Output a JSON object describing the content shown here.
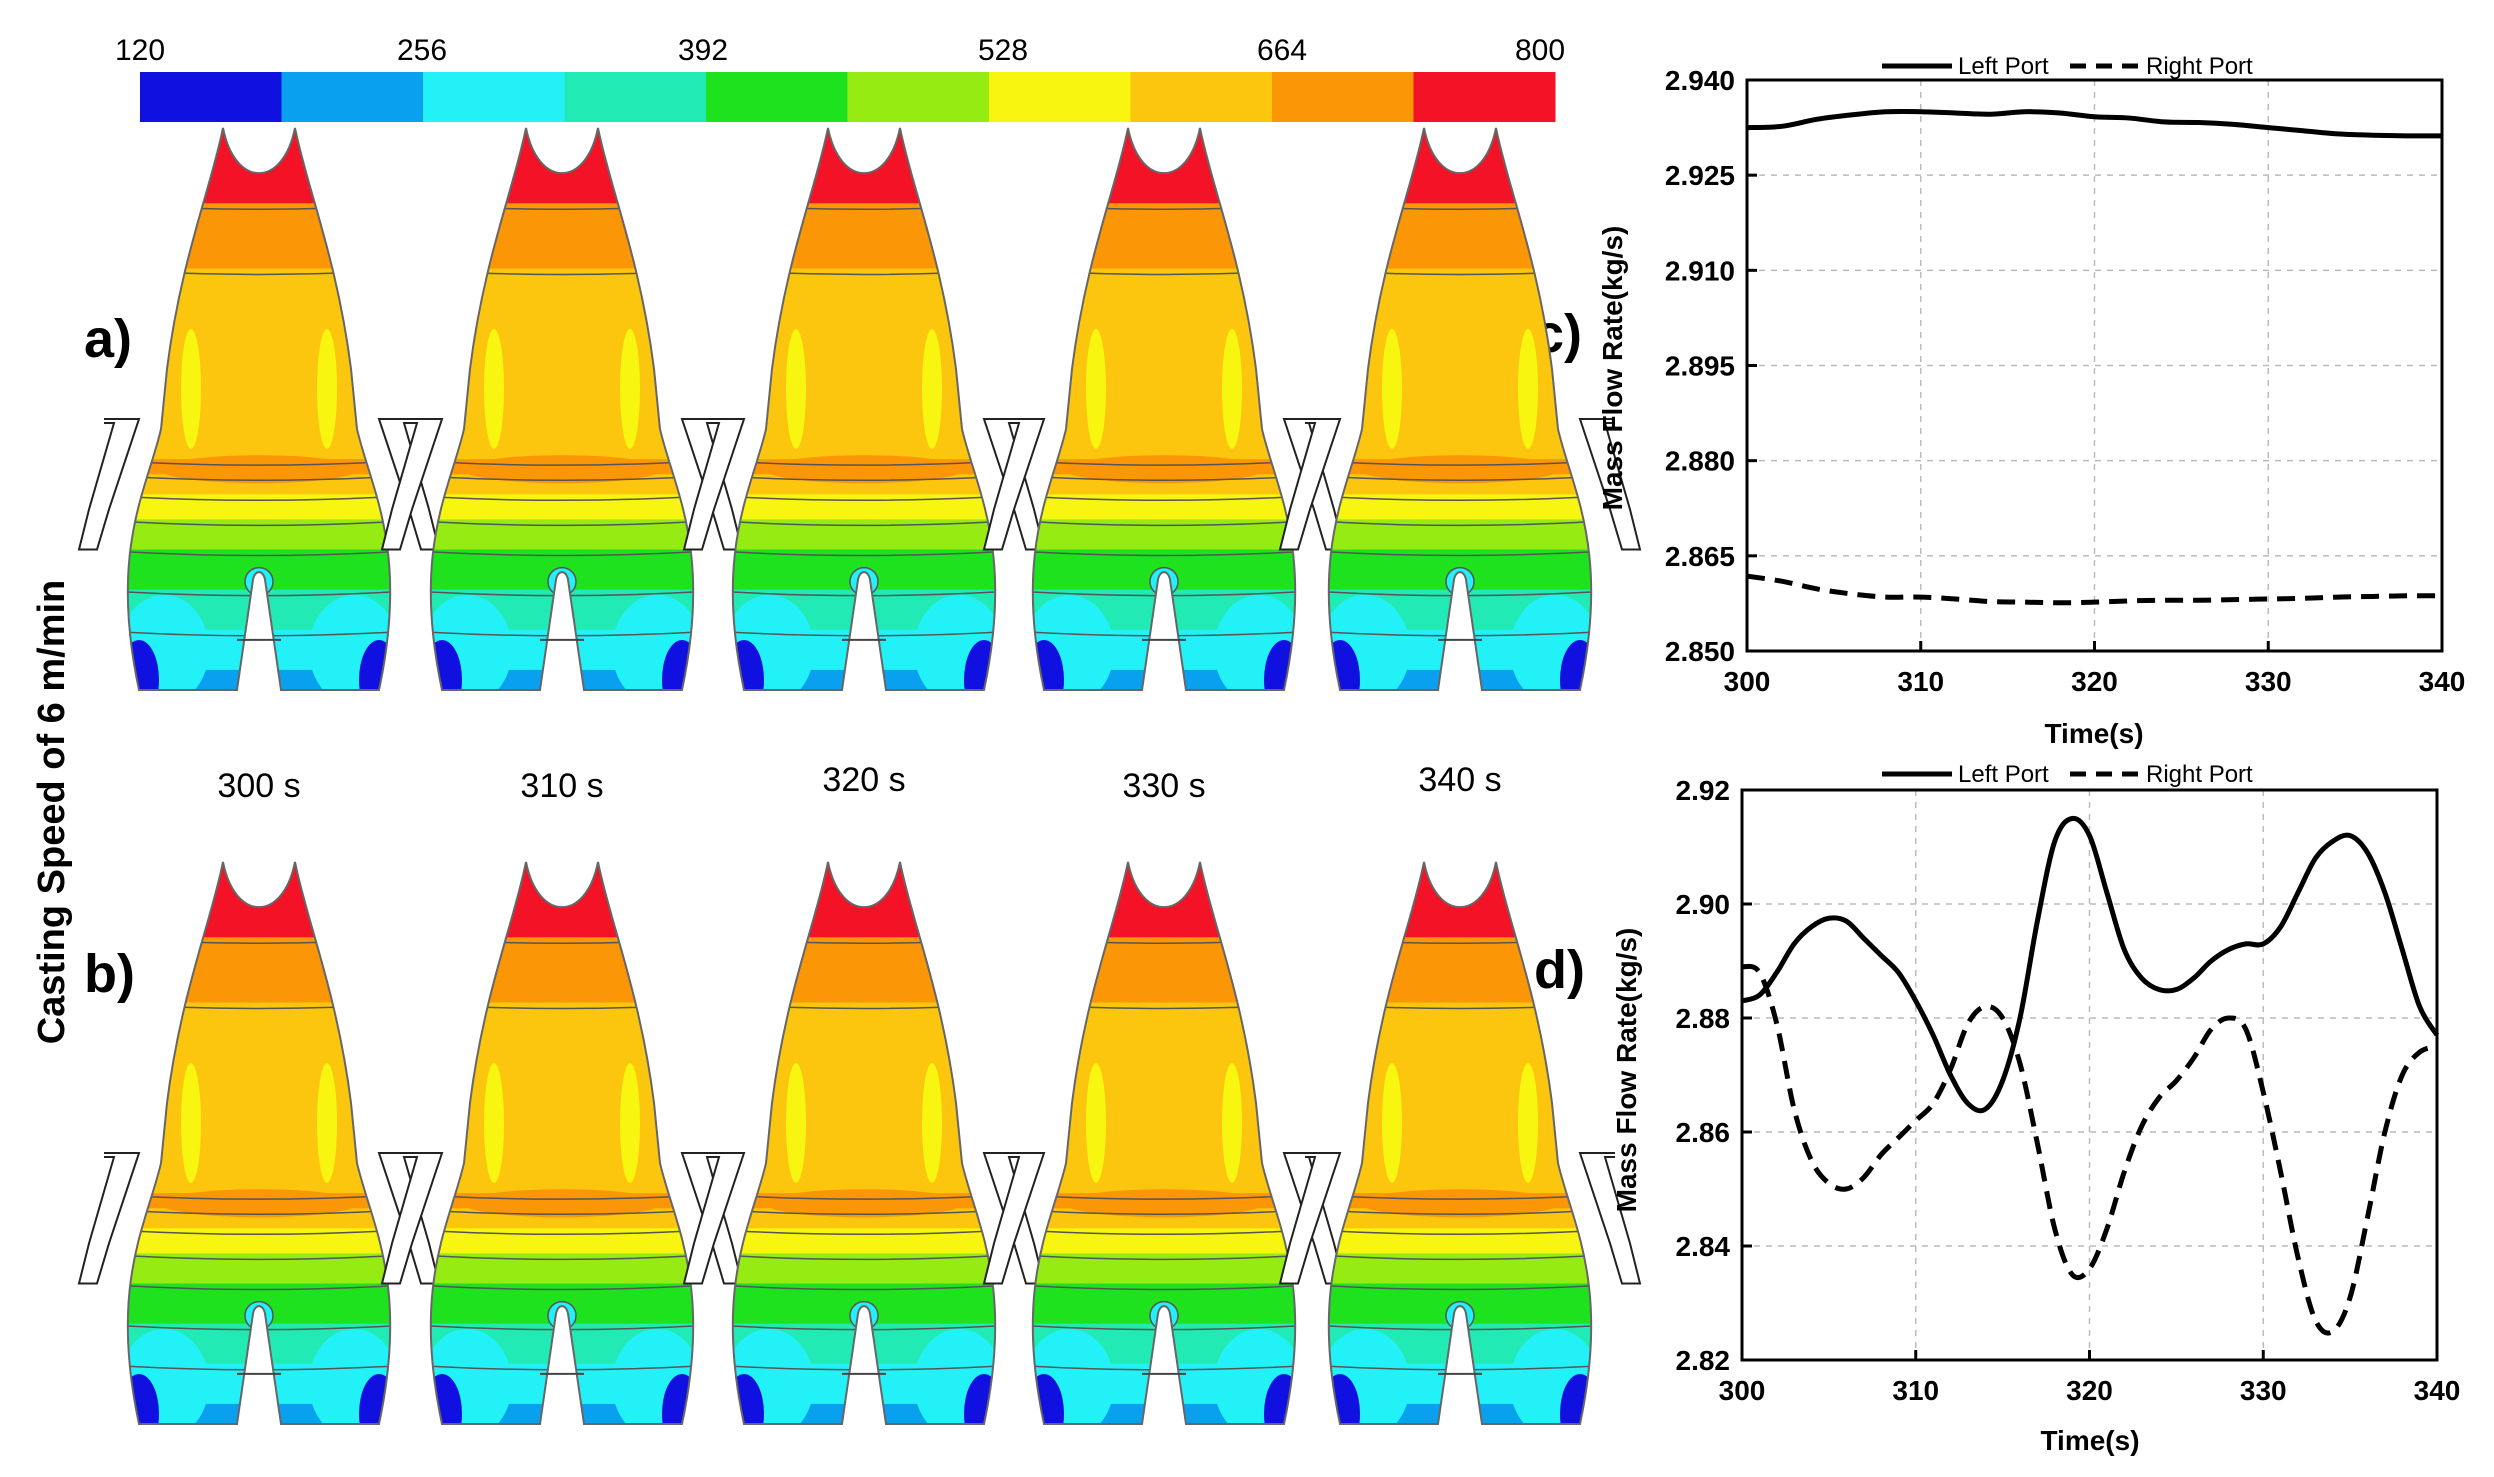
{
  "figure": {
    "side_label": "Casting Speed of 6 m/min",
    "panel_letters": {
      "a": "a)",
      "b": "b)",
      "c": "c)",
      "d": "d)"
    },
    "time_labels": [
      "300 s",
      "310 s",
      "320 s",
      "330 s",
      "340 s"
    ]
  },
  "colorbar": {
    "tick_labels": [
      "120",
      "256",
      "392",
      "528",
      "664",
      "800"
    ],
    "band_colors": [
      "#1010e0",
      "#0aa0f0",
      "#22f2f8",
      "#22eab4",
      "#1ee21e",
      "#96ec12",
      "#f8f510",
      "#fbc60d",
      "#fb9606",
      "#f31226"
    ]
  },
  "contour_colors": {
    "top": "#f31226",
    "upper": "#fb9606",
    "middle": "#fbc60d",
    "light": "#f8f510",
    "lime": "#96ec12",
    "green": "#1ee21e",
    "teal": "#22eab4",
    "cyan": "#22f2f8",
    "blue": "#0aa0f0",
    "dark": "#1010e0"
  },
  "chart_data": [
    {
      "panel": "c",
      "type": "line",
      "xlabel": "Time(s)",
      "ylabel": "Mass Flow Rate(kg/s)",
      "xlim": [
        300,
        340
      ],
      "ylim": [
        2.85,
        2.94
      ],
      "xticks": [
        "300",
        "310",
        "320",
        "330",
        "340"
      ],
      "yticks": [
        "2.850",
        "2.865",
        "2.880",
        "2.895",
        "2.910",
        "2.925",
        "2.940"
      ],
      "grid": true,
      "legend": "top",
      "series": [
        {
          "name": "Left Port",
          "style": "solid",
          "x": [
            300,
            302,
            304,
            306,
            308,
            310,
            312,
            314,
            316,
            318,
            320,
            322,
            324,
            326,
            328,
            330,
            332,
            334,
            336,
            338,
            340
          ],
          "y": [
            2.9325,
            2.9327,
            2.9338,
            2.9345,
            2.935,
            2.935,
            2.9348,
            2.9346,
            2.935,
            2.9348,
            2.9342,
            2.934,
            2.9334,
            2.9333,
            2.933,
            2.9325,
            2.932,
            2.9315,
            2.9313,
            2.9312,
            2.9312
          ]
        },
        {
          "name": "Right Port",
          "style": "dashed",
          "x": [
            300,
            302,
            304,
            306,
            308,
            310,
            312,
            314,
            316,
            318,
            320,
            322,
            324,
            326,
            328,
            330,
            332,
            334,
            336,
            338,
            340
          ],
          "y": [
            2.8618,
            2.861,
            2.8598,
            2.859,
            2.8585,
            2.8585,
            2.8582,
            2.8578,
            2.8577,
            2.8576,
            2.8577,
            2.8579,
            2.858,
            2.858,
            2.8581,
            2.8582,
            2.8583,
            2.8585,
            2.8586,
            2.8587,
            2.8587
          ]
        }
      ]
    },
    {
      "panel": "d",
      "type": "line",
      "xlabel": "Time(s)",
      "ylabel": "Mass Flow Rate(kg/s)",
      "xlim": [
        300,
        340
      ],
      "ylim": [
        2.82,
        2.92
      ],
      "xticks": [
        "300",
        "310",
        "320",
        "330",
        "340"
      ],
      "yticks": [
        "2.82",
        "2.84",
        "2.86",
        "2.88",
        "2.90",
        "2.92"
      ],
      "grid": true,
      "legend": "top",
      "series": [
        {
          "name": "Left Port",
          "style": "solid",
          "x": [
            300,
            301,
            302,
            303,
            304,
            305,
            306,
            307,
            308,
            309,
            310,
            311,
            312,
            313,
            314,
            315,
            316,
            317,
            318,
            319,
            320,
            321,
            322,
            323,
            324,
            325,
            326,
            327,
            328,
            329,
            330,
            331,
            332,
            333,
            334,
            335,
            336,
            337,
            338,
            339,
            340
          ],
          "y": [
            2.883,
            2.884,
            2.888,
            2.893,
            2.896,
            2.8975,
            2.897,
            2.894,
            2.891,
            2.888,
            2.883,
            2.877,
            2.87,
            2.865,
            2.864,
            2.869,
            2.88,
            2.897,
            2.911,
            2.915,
            2.912,
            2.902,
            2.892,
            2.887,
            2.885,
            2.885,
            2.887,
            2.89,
            2.892,
            2.893,
            2.893,
            2.896,
            2.902,
            2.908,
            2.911,
            2.912,
            2.909,
            2.902,
            2.892,
            2.882,
            2.877
          ]
        },
        {
          "name": "Right Port",
          "style": "dashed",
          "x": [
            300,
            301,
            302,
            303,
            304,
            305,
            306,
            307,
            308,
            309,
            310,
            311,
            312,
            313,
            314,
            315,
            316,
            317,
            318,
            319,
            320,
            321,
            322,
            323,
            324,
            325,
            326,
            327,
            328,
            329,
            330,
            331,
            332,
            333,
            334,
            335,
            336,
            337,
            338,
            339,
            340
          ],
          "y": [
            2.889,
            2.888,
            2.879,
            2.864,
            2.855,
            2.851,
            2.85,
            2.852,
            2.856,
            2.859,
            2.862,
            2.865,
            2.871,
            2.879,
            2.882,
            2.88,
            2.872,
            2.858,
            2.843,
            2.835,
            2.836,
            2.843,
            2.853,
            2.861,
            2.866,
            2.869,
            2.873,
            2.878,
            2.88,
            2.878,
            2.867,
            2.853,
            2.838,
            2.827,
            2.825,
            2.831,
            2.845,
            2.86,
            2.87,
            2.874,
            2.875
          ]
        }
      ]
    }
  ]
}
